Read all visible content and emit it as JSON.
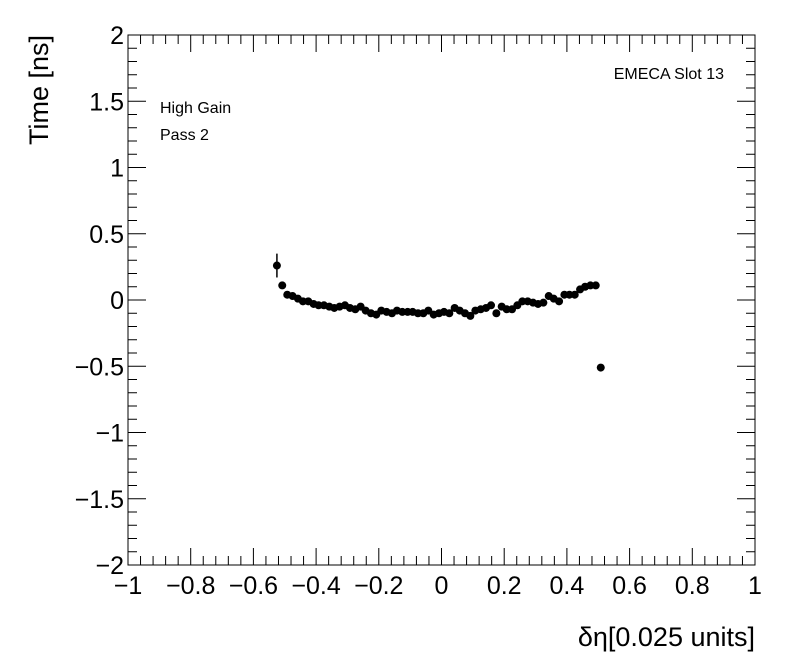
{
  "chart_data": {
    "type": "scatter",
    "xlabel": "δη[0.025 units]",
    "ylabel": "Time [ns]",
    "xlim": [
      -1,
      1
    ],
    "ylim": [
      -2,
      2
    ],
    "x_ticks": [
      -1,
      -0.8,
      -0.6,
      -0.4,
      -0.2,
      0,
      0.2,
      0.4,
      0.6,
      0.8,
      1
    ],
    "x_tick_labels": [
      "−1",
      "−0.8",
      "−0.6",
      "−0.4",
      "−0.2",
      "0",
      "0.2",
      "0.4",
      "0.6",
      "0.8",
      "1"
    ],
    "y_ticks": [
      -2,
      -1.5,
      -1,
      -0.5,
      0,
      0.5,
      1,
      1.5,
      2
    ],
    "y_tick_labels": [
      "−2",
      "−1.5",
      "−1",
      "−0.5",
      "0",
      "0.5",
      "1",
      "1.5",
      "2"
    ],
    "grid": false,
    "annotations": {
      "top_right": "EMECA Slot 13",
      "top_left_line1": "High Gain",
      "top_left_line2": "Pass 2"
    },
    "points": [
      {
        "x": -0.525,
        "y": 0.26,
        "err": 0.09
      },
      {
        "x": -0.508,
        "y": 0.11,
        "err": 0.02
      },
      {
        "x": -0.492,
        "y": 0.04,
        "err": 0.01
      },
      {
        "x": -0.475,
        "y": 0.03,
        "err": 0.01
      },
      {
        "x": -0.458,
        "y": 0.01,
        "err": 0.01
      },
      {
        "x": -0.442,
        "y": -0.01,
        "err": 0.01
      },
      {
        "x": -0.425,
        "y": -0.01,
        "err": 0.01
      },
      {
        "x": -0.408,
        "y": -0.03,
        "err": 0.01
      },
      {
        "x": -0.392,
        "y": -0.04,
        "err": 0.01
      },
      {
        "x": -0.375,
        "y": -0.04,
        "err": 0.01
      },
      {
        "x": -0.358,
        "y": -0.05,
        "err": 0.01
      },
      {
        "x": -0.342,
        "y": -0.06,
        "err": 0.01
      },
      {
        "x": -0.325,
        "y": -0.05,
        "err": 0.01
      },
      {
        "x": -0.308,
        "y": -0.04,
        "err": 0.01
      },
      {
        "x": -0.292,
        "y": -0.06,
        "err": 0.01
      },
      {
        "x": -0.275,
        "y": -0.07,
        "err": 0.01
      },
      {
        "x": -0.258,
        "y": -0.05,
        "err": 0.01
      },
      {
        "x": -0.242,
        "y": -0.08,
        "err": 0.01
      },
      {
        "x": -0.225,
        "y": -0.1,
        "err": 0.01
      },
      {
        "x": -0.208,
        "y": -0.11,
        "err": 0.01
      },
      {
        "x": -0.192,
        "y": -0.08,
        "err": 0.01
      },
      {
        "x": -0.175,
        "y": -0.09,
        "err": 0.01
      },
      {
        "x": -0.158,
        "y": -0.1,
        "err": 0.01
      },
      {
        "x": -0.142,
        "y": -0.08,
        "err": 0.01
      },
      {
        "x": -0.125,
        "y": -0.09,
        "err": 0.01
      },
      {
        "x": -0.108,
        "y": -0.09,
        "err": 0.01
      },
      {
        "x": -0.092,
        "y": -0.09,
        "err": 0.01
      },
      {
        "x": -0.075,
        "y": -0.1,
        "err": 0.01
      },
      {
        "x": -0.058,
        "y": -0.1,
        "err": 0.01
      },
      {
        "x": -0.042,
        "y": -0.08,
        "err": 0.01
      },
      {
        "x": -0.025,
        "y": -0.11,
        "err": 0.01
      },
      {
        "x": -0.008,
        "y": -0.1,
        "err": 0.01
      },
      {
        "x": 0.008,
        "y": -0.09,
        "err": 0.01
      },
      {
        "x": 0.025,
        "y": -0.1,
        "err": 0.01
      },
      {
        "x": 0.042,
        "y": -0.06,
        "err": 0.01
      },
      {
        "x": 0.058,
        "y": -0.08,
        "err": 0.01
      },
      {
        "x": 0.075,
        "y": -0.1,
        "err": 0.01
      },
      {
        "x": 0.092,
        "y": -0.12,
        "err": 0.01
      },
      {
        "x": 0.108,
        "y": -0.08,
        "err": 0.01
      },
      {
        "x": 0.125,
        "y": -0.07,
        "err": 0.01
      },
      {
        "x": 0.142,
        "y": -0.06,
        "err": 0.01
      },
      {
        "x": 0.158,
        "y": -0.04,
        "err": 0.01
      },
      {
        "x": 0.175,
        "y": -0.1,
        "err": 0.01
      },
      {
        "x": 0.192,
        "y": -0.05,
        "err": 0.01
      },
      {
        "x": 0.208,
        "y": -0.07,
        "err": 0.01
      },
      {
        "x": 0.225,
        "y": -0.07,
        "err": 0.01
      },
      {
        "x": 0.242,
        "y": -0.04,
        "err": 0.01
      },
      {
        "x": 0.258,
        "y": -0.01,
        "err": 0.01
      },
      {
        "x": 0.275,
        "y": -0.01,
        "err": 0.01
      },
      {
        "x": 0.292,
        "y": -0.02,
        "err": 0.01
      },
      {
        "x": 0.308,
        "y": -0.03,
        "err": 0.01
      },
      {
        "x": 0.325,
        "y": -0.02,
        "err": 0.01
      },
      {
        "x": 0.342,
        "y": 0.03,
        "err": 0.01
      },
      {
        "x": 0.358,
        "y": 0.01,
        "err": 0.01
      },
      {
        "x": 0.375,
        "y": -0.01,
        "err": 0.01
      },
      {
        "x": 0.392,
        "y": 0.04,
        "err": 0.01
      },
      {
        "x": 0.408,
        "y": 0.04,
        "err": 0.01
      },
      {
        "x": 0.425,
        "y": 0.04,
        "err": 0.01
      },
      {
        "x": 0.442,
        "y": 0.08,
        "err": 0.01
      },
      {
        "x": 0.458,
        "y": 0.1,
        "err": 0.01
      },
      {
        "x": 0.475,
        "y": 0.11,
        "err": 0.01
      },
      {
        "x": 0.492,
        "y": 0.11,
        "err": 0.01
      },
      {
        "x": 0.508,
        "y": -0.51,
        "err": 0.01
      }
    ],
    "marker_color": "#000000"
  }
}
